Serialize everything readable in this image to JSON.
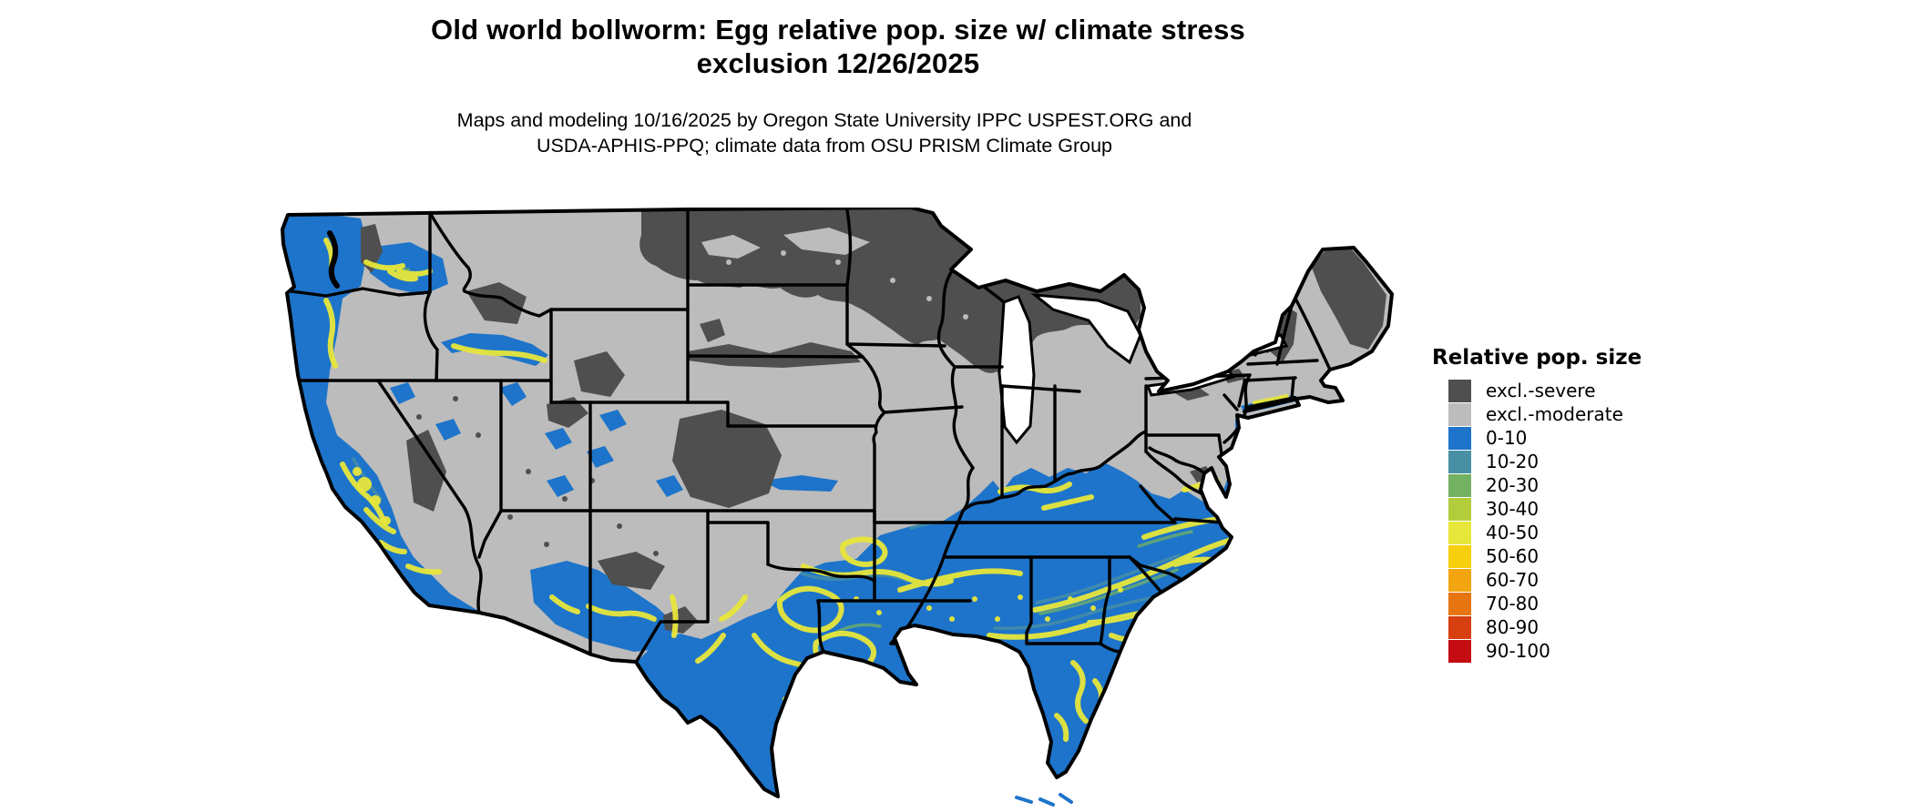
{
  "title": {
    "line1": "Old world bollworm: Egg relative pop. size w/ climate stress",
    "line2": "exclusion 12/26/2025"
  },
  "subtitle": {
    "line1": "Maps and modeling 10/16/2025 by Oregon State University IPPC USPEST.ORG and",
    "line2": "USDA-APHIS-PPQ; climate data from OSU PRISM Climate Group"
  },
  "legend": {
    "title": "Relative pop. size",
    "items": [
      {
        "label": "excl.-severe",
        "color": "#4f4f4f"
      },
      {
        "label": "excl.-moderate",
        "color": "#bcbcbc"
      },
      {
        "label": "0-10",
        "color": "#1d74ca"
      },
      {
        "label": "10-20",
        "color": "#4a90a4"
      },
      {
        "label": "20-30",
        "color": "#74b163"
      },
      {
        "label": "30-40",
        "color": "#b3cc3c"
      },
      {
        "label": "40-50",
        "color": "#e7e63a"
      },
      {
        "label": "50-60",
        "color": "#f7cf0c"
      },
      {
        "label": "60-70",
        "color": "#f2a511"
      },
      {
        "label": "70-80",
        "color": "#e67511"
      },
      {
        "label": "80-90",
        "color": "#d63f10"
      },
      {
        "label": "90-100",
        "color": "#c40d12"
      }
    ]
  },
  "map": {
    "region": "Continental United States",
    "border_color": "#000000",
    "water_color": "#ffffff",
    "dominant_zones": {
      "north": "excl.-severe",
      "central": "excl.-moderate",
      "south_and_coasts": "0-10 with 40-50 bands"
    }
  }
}
